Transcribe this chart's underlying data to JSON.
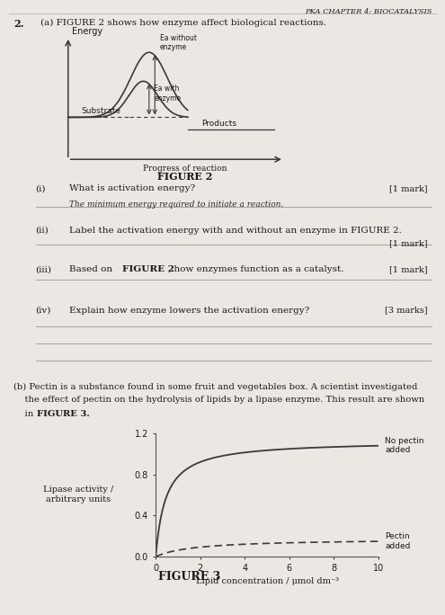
{
  "paper_bg": "#ebe7e2",
  "header_text": "PKA CHAPTER 4: BIOCATALYSIS",
  "part_a_label": "2.   (a) FIGURE 2 shows how enzyme affect biological reactions.",
  "figure2_xlabel": "Progress of reaction",
  "figure2_ylabel": "Energy",
  "figure2_title": "FIGURE 2",
  "figure2_substrate_label": "Substrate",
  "figure2_products_label": "Products",
  "figure2_ea_without": "Ea without\nenzyme",
  "figure2_ea_with": "Ea with\nenzyme",
  "qi_label": "(i)",
  "qi_text": "What is activation energy?",
  "qi_answer": "The minimum energy required to initiate a reaction.",
  "qi_mark": "[1 mark]",
  "qii_label": "(ii)",
  "qii_text": "Label the activation energy with and without an enzyme in FIGURE 2.",
  "qii_mark": "[1 mark]",
  "qiii_label": "(iii)",
  "qiii_text_plain": "Based on ",
  "qiii_text_bold": "FIGURE 2",
  "qiii_text_rest": ", how enzymes function as a catalyst.",
  "qiii_mark": "[1 mark]",
  "qiv_label": "(iv)",
  "qiv_text": "Explain how enzyme lowers the activation energy?",
  "qiv_mark": "[3 marks]",
  "partb_line1": "(b) Pectin is a substance found in some fruit and vegetables box. A scientist investigated",
  "partb_line2": "    the effect of pectin on the hydrolysis of lipids by a lipase enzyme. This result are shown",
  "partb_line3": "    in FIGURE 3.",
  "figure3_title": "FIGURE 3",
  "figure3_xlabel": "Lipid concentration / μmol dm⁻³",
  "figure3_ylabel": "Lipase activity /\narbitrary units",
  "figure3_no_pectin_label": "No pectin\nadded",
  "figure3_pectin_label": "Pectin\nadded",
  "figure3_ylim": [
    0.0,
    1.2
  ],
  "figure3_xlim": [
    0,
    10
  ],
  "figure3_yticks": [
    0.0,
    0.4,
    0.8,
    1.2
  ],
  "figure3_xticks": [
    0,
    2,
    4,
    6,
    8,
    10
  ],
  "text_color": "#1a1a1a",
  "curve_color": "#3a3a3a",
  "line_color": "#888888"
}
